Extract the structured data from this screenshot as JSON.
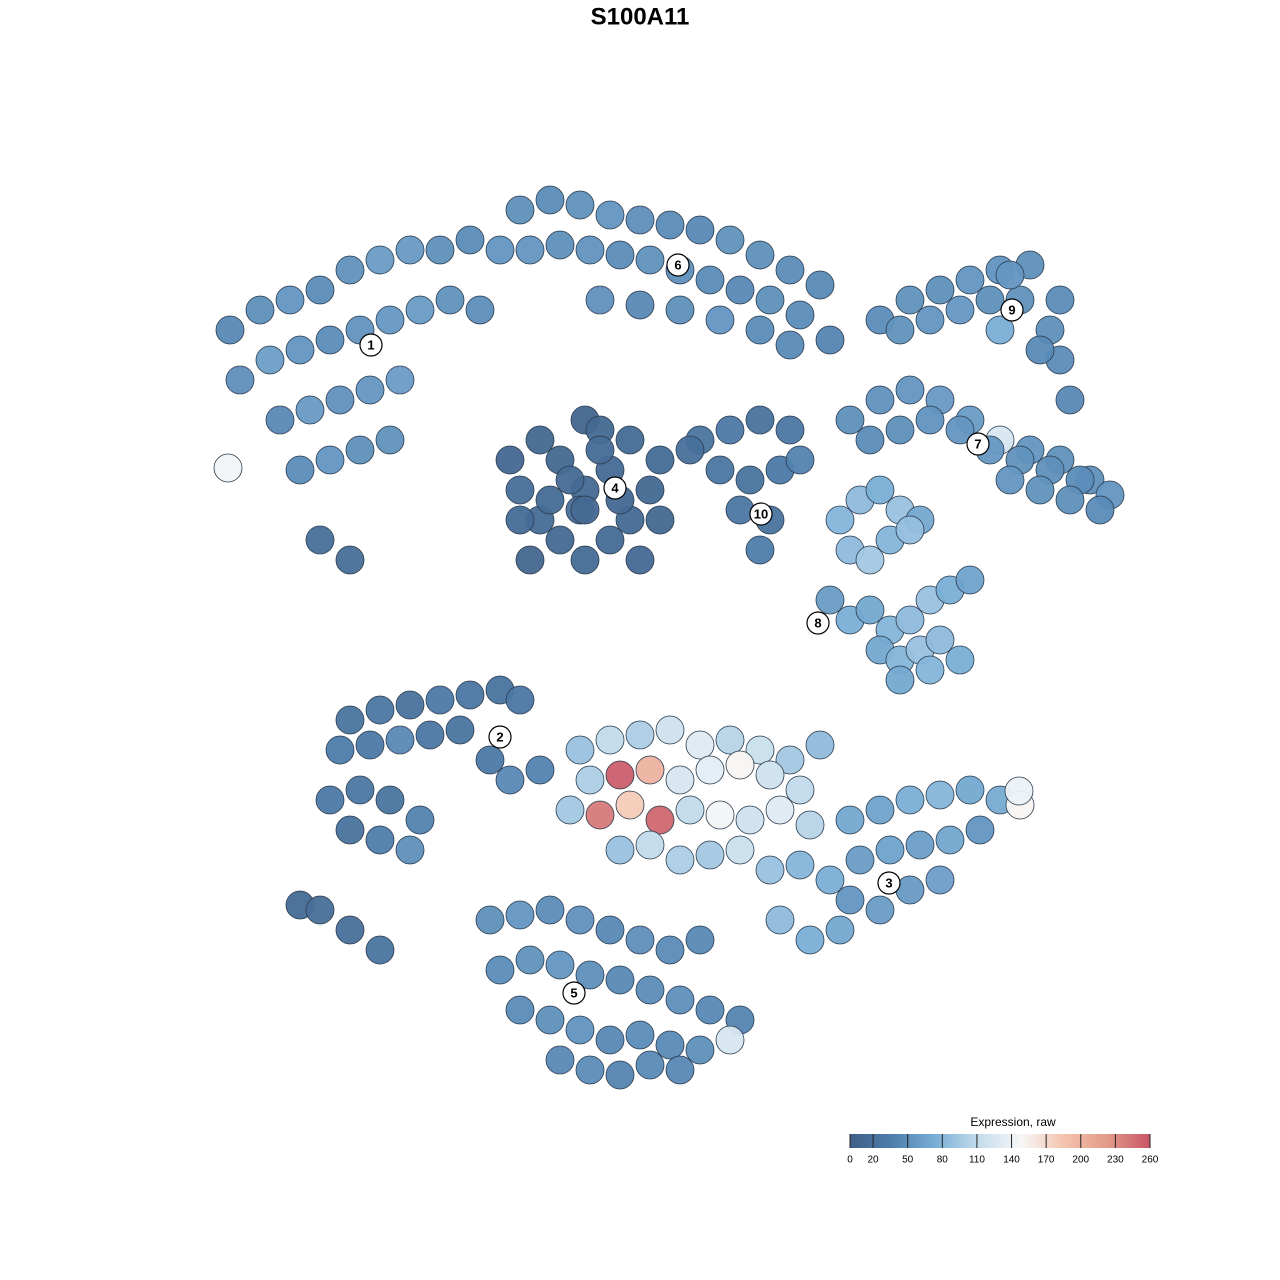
{
  "chart_data": {
    "type": "scatter",
    "title": "S100A11",
    "xlim": [
      0,
      1280
    ],
    "ylim": [
      1280,
      0
    ],
    "marker_stroke": "#2b3b4d",
    "x": [
      230,
      260,
      290,
      320,
      350,
      380,
      410,
      440,
      470,
      500,
      240,
      270,
      300,
      330,
      360,
      390,
      420,
      450,
      480,
      280,
      310,
      340,
      370,
      400,
      300,
      330,
      360,
      390,
      320,
      350,
      520,
      550,
      580,
      610,
      640,
      670,
      700,
      730,
      760,
      790,
      820,
      530,
      560,
      590,
      620,
      650,
      680,
      710,
      740,
      770,
      800,
      600,
      640,
      680,
      720,
      760,
      790,
      830,
      585,
      540,
      630,
      520,
      650,
      560,
      610,
      585,
      540,
      630,
      510,
      660,
      560,
      610,
      585,
      530,
      640,
      580,
      600,
      550,
      620,
      570,
      600,
      585,
      660,
      520,
      700,
      730,
      760,
      790,
      720,
      750,
      780,
      740,
      770,
      760,
      800,
      690,
      880,
      910,
      940,
      970,
      1000,
      1030,
      1060,
      900,
      930,
      960,
      990,
      1020,
      1050,
      1060,
      1040,
      1000,
      1010,
      1070,
      850,
      880,
      910,
      940,
      970,
      1000,
      1030,
      1060,
      1090,
      1110,
      870,
      900,
      930,
      960,
      990,
      1020,
      1050,
      1080,
      1010,
      1040,
      1070,
      1100,
      840,
      860,
      880,
      900,
      920,
      850,
      870,
      890,
      910,
      830,
      850,
      870,
      890,
      910,
      930,
      950,
      970,
      880,
      900,
      920,
      940,
      960,
      900,
      930,
      350,
      380,
      410,
      440,
      470,
      500,
      520,
      340,
      370,
      400,
      430,
      460,
      490,
      330,
      360,
      390,
      420,
      350,
      380,
      410,
      300,
      320,
      350,
      380,
      510,
      540,
      580,
      610,
      640,
      670,
      700,
      730,
      760,
      790,
      820,
      590,
      620,
      650,
      680,
      710,
      740,
      770,
      800,
      570,
      600,
      630,
      660,
      690,
      720,
      750,
      780,
      810,
      620,
      650,
      680,
      710,
      740,
      770,
      800,
      830,
      850,
      880,
      910,
      940,
      970,
      1000,
      1020,
      860,
      890,
      920,
      950,
      980,
      850,
      880,
      910,
      940,
      780,
      810,
      840,
      490,
      520,
      550,
      580,
      610,
      640,
      670,
      700,
      500,
      530,
      560,
      590,
      620,
      650,
      680,
      710,
      740,
      520,
      550,
      580,
      610,
      640,
      670,
      700,
      730,
      560,
      590,
      620,
      650,
      680,
      228,
      1019
    ],
    "y": [
      330,
      310,
      300,
      290,
      270,
      260,
      250,
      250,
      240,
      250,
      380,
      360,
      350,
      340,
      330,
      320,
      310,
      300,
      310,
      420,
      410,
      400,
      390,
      380,
      470,
      460,
      450,
      440,
      540,
      560,
      210,
      200,
      205,
      215,
      220,
      225,
      230,
      240,
      255,
      270,
      285,
      250,
      245,
      250,
      255,
      260,
      270,
      280,
      290,
      300,
      315,
      300,
      305,
      310,
      320,
      330,
      345,
      340,
      490,
      440,
      440,
      490,
      490,
      540,
      540,
      420,
      520,
      520,
      460,
      460,
      460,
      470,
      560,
      560,
      560,
      510,
      430,
      500,
      500,
      480,
      450,
      510,
      520,
      520,
      440,
      430,
      420,
      430,
      470,
      480,
      470,
      510,
      520,
      550,
      460,
      450,
      320,
      300,
      290,
      280,
      270,
      265,
      300,
      330,
      320,
      310,
      300,
      300,
      330,
      360,
      350,
      330,
      275,
      400,
      420,
      400,
      390,
      400,
      420,
      440,
      450,
      460,
      480,
      495,
      440,
      430,
      420,
      430,
      450,
      460,
      470,
      480,
      480,
      490,
      500,
      510,
      520,
      500,
      490,
      510,
      520,
      550,
      560,
      540,
      530,
      600,
      620,
      610,
      630,
      620,
      600,
      590,
      580,
      650,
      660,
      650,
      640,
      660,
      680,
      670,
      720,
      710,
      705,
      700,
      695,
      690,
      700,
      750,
      745,
      740,
      735,
      730,
      760,
      800,
      790,
      800,
      820,
      830,
      840,
      850,
      905,
      910,
      930,
      950,
      780,
      770,
      750,
      740,
      735,
      730,
      745,
      740,
      750,
      760,
      745,
      780,
      775,
      770,
      780,
      770,
      765,
      775,
      790,
      810,
      815,
      805,
      820,
      810,
      815,
      820,
      810,
      825,
      850,
      845,
      860,
      855,
      850,
      870,
      865,
      880,
      820,
      810,
      800,
      795,
      790,
      800,
      805,
      860,
      850,
      845,
      840,
      830,
      900,
      910,
      890,
      880,
      920,
      940,
      930,
      920,
      915,
      910,
      920,
      930,
      940,
      950,
      940,
      970,
      960,
      965,
      975,
      980,
      990,
      1000,
      1010,
      1020,
      1010,
      1020,
      1030,
      1040,
      1035,
      1045,
      1050,
      1040,
      1060,
      1070,
      1075,
      1065,
      1070,
      468,
      791
    ],
    "values": [
      45,
      50,
      55,
      48,
      52,
      60,
      58,
      50,
      47,
      55,
      50,
      62,
      55,
      48,
      53,
      57,
      60,
      52,
      49,
      45,
      58,
      52,
      56,
      60,
      48,
      55,
      50,
      52,
      20,
      18,
      50,
      48,
      52,
      55,
      50,
      47,
      45,
      52,
      50,
      48,
      46,
      55,
      50,
      53,
      48,
      52,
      50,
      47,
      45,
      50,
      48,
      52,
      45,
      50,
      55,
      48,
      46,
      42,
      12,
      10,
      15,
      18,
      10,
      12,
      14,
      8,
      16,
      12,
      11,
      14,
      10,
      13,
      15,
      9,
      12,
      17,
      10,
      14,
      11,
      13,
      16,
      12,
      10,
      15,
      25,
      30,
      22,
      28,
      26,
      24,
      30,
      27,
      23,
      35,
      40,
      20,
      48,
      52,
      50,
      55,
      53,
      50,
      48,
      52,
      55,
      57,
      50,
      52,
      50,
      48,
      46,
      75,
      55,
      45,
      50,
      52,
      55,
      58,
      60,
      125,
      55,
      52,
      50,
      55,
      48,
      50,
      53,
      55,
      57,
      52,
      50,
      48,
      55,
      52,
      50,
      47,
      80,
      85,
      75,
      90,
      70,
      85,
      95,
      80,
      88,
      60,
      75,
      70,
      80,
      85,
      90,
      75,
      65,
      70,
      80,
      90,
      85,
      75,
      70,
      80,
      25,
      28,
      22,
      30,
      26,
      24,
      28,
      35,
      30,
      45,
      28,
      25,
      30,
      30,
      28,
      25,
      40,
      22,
      35,
      50,
      15,
      18,
      20,
      25,
      45,
      40,
      90,
      110,
      100,
      120,
      130,
      105,
      115,
      95,
      85,
      100,
      255,
      200,
      125,
      135,
      150,
      120,
      110,
      95,
      240,
      180,
      250,
      110,
      145,
      120,
      130,
      105,
      90,
      110,
      100,
      95,
      115,
      90,
      80,
      75,
      70,
      65,
      75,
      80,
      70,
      72,
      150,
      60,
      65,
      62,
      68,
      55,
      55,
      60,
      58,
      62,
      85,
      75,
      70,
      50,
      55,
      48,
      52,
      45,
      50,
      47,
      45,
      48,
      52,
      55,
      50,
      45,
      48,
      50,
      45,
      42,
      47,
      50,
      53,
      45,
      48,
      46,
      50,
      125,
      45,
      48,
      42,
      46,
      44,
      145,
      140
    ],
    "cluster_labels": [
      {
        "text": "1",
        "x": 371,
        "y": 345
      },
      {
        "text": "6",
        "x": 678,
        "y": 265
      },
      {
        "text": "4",
        "x": 615,
        "y": 488
      },
      {
        "text": "10",
        "x": 761,
        "y": 514
      },
      {
        "text": "9",
        "x": 1012,
        "y": 310
      },
      {
        "text": "7",
        "x": 978,
        "y": 444
      },
      {
        "text": "8",
        "x": 818,
        "y": 623
      },
      {
        "text": "2",
        "x": 500,
        "y": 737
      },
      {
        "text": "3",
        "x": 889,
        "y": 883
      },
      {
        "text": "5",
        "x": 574,
        "y": 993
      }
    ],
    "colorbar": {
      "title": "Expression, raw",
      "lim": [
        0,
        260
      ],
      "ticks": [
        0,
        20,
        50,
        80,
        110,
        140,
        170,
        200,
        230,
        260
      ],
      "colors": [
        "#3f5f86",
        "#4f7fad",
        "#79aed6",
        "#c4dcec",
        "#f7f7f7",
        "#f4c3ad",
        "#e39a8a",
        "#c85566"
      ]
    }
  }
}
